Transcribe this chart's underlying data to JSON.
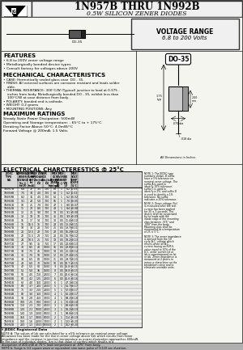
{
  "title_main": "1N957B THRU 1N992B",
  "title_sub": "0.5W SILICON ZENER DIODES",
  "voltage_range_line1": "VOLTAGE RANGE",
  "voltage_range_line2": "6.8 to 200 Volts",
  "features_title": "FEATURES",
  "features": [
    "• 6.8 to 200V zener voltage range",
    "• Metallurgically bonded device types",
    "• Consult factory for voltages above 200V"
  ],
  "mech_title": "MECHANICAL CHARACTERISTICS",
  "mech": [
    "• CASE: Hermetically sealed glass case  DO - 35.",
    "• FINISH: All external surfaces are corrosion resistant and leads solder",
    "    able.",
    "• THERMAL RESISTANCE: 300°C/W (Typical) junction to lead at 0.375 -",
    "    inches from body. Metallurgically bonded DO - 35, exhibit less than",
    "    100°C/W at case distance from body.",
    "• POLARITY: banded end is cathode.",
    "• WEIGHT: 0.2 grams",
    "• MOUNTING POSITIONS: Any"
  ],
  "max_title": "MAXIMUM RATINGS",
  "max_ratings": [
    "Steady State Power Dissipation: 500mW",
    "Operating and Storage temperature: - 65°C to + 175°C.",
    "Derating Factor Above 50°C: 4.0mW/°C",
    "Forward Voltage @ 200mA: 1.5 Volts"
  ],
  "elec_title": "ELECTRICAL CHARCTERESTICS @ 25°C",
  "col_headers": [
    "JEDEC\nTYPE\nNO.",
    "NOMINAL\nZENER\nVOLTAGE\nVz @\nIzt (V)",
    "TEST\nCURR-\nENT\nIzt\n(mA)",
    "MAX ZENER IMPEDANCE\nZzt@Izt     Zzk@Izk\n(Ω)            (Ω)",
    "MAX\nDC\nZENER\nCURR\nIzm(mA)",
    "MAX REVERSE\nCURRENT\nIR @ VR\nμA        V",
    "MAX\nVOLT\nTEMP\nCOEFF\n%/°C"
  ],
  "table_data": [
    [
      "1N957B",
      "6.8",
      "37",
      "3.5",
      "700",
      "68",
      "1",
      "6.2",
      "-0.05"
    ],
    [
      "1N958B",
      "7.5",
      "34",
      "4.0",
      "700",
      "63",
      "1",
      "6.2",
      "-0.02"
    ],
    [
      "1N959B",
      "8.2",
      "31",
      "4.5",
      "700",
      "61",
      "1",
      "6.2",
      "+0.02"
    ],
    [
      "1N960B",
      "9.1",
      "28",
      "5.0",
      "700",
      "55",
      "1",
      "7.0",
      "+0.05"
    ],
    [
      "1N961B",
      "10",
      "25",
      "7.0",
      "700",
      "47",
      "1",
      "8.0",
      "+0.07"
    ],
    [
      "1N962B",
      "11",
      "23",
      "8.0",
      "700",
      "43",
      "1",
      "8.4",
      "+0.08"
    ],
    [
      "1N963B",
      "12",
      "21",
      "9.0",
      "700",
      "38",
      "0.5",
      "9.1",
      "+0.08"
    ],
    [
      "1N964B",
      "13",
      "19",
      "10",
      "700",
      "35",
      "0.5",
      "9.9",
      "+0.09"
    ],
    [
      "1N965B",
      "15",
      "17",
      "14",
      "700",
      "30",
      "0.5",
      "11.4",
      "+0.10"
    ],
    [
      "1N966B",
      "16",
      "15.5",
      "16",
      "700",
      "28",
      "0.5",
      "12.2",
      "+0.11"
    ],
    [
      "1N967B",
      "18",
      "14",
      "20",
      "750",
      "25",
      "0.5",
      "13.7",
      "+0.11"
    ],
    [
      "1N968B",
      "20",
      "12.5",
      "22",
      "750",
      "22",
      "0.5",
      "15.2",
      "+0.12"
    ],
    [
      "1N969B",
      "22",
      "11.5",
      "23",
      "750",
      "20",
      "0.5",
      "16.7",
      "+0.12"
    ],
    [
      "1N970B",
      "24",
      "10.5",
      "25",
      "750",
      "19",
      "0.5",
      "18.2",
      "+0.13"
    ],
    [
      "1N971B",
      "27",
      "9.5",
      "35",
      "750",
      "17",
      "0.5",
      "20.6",
      "+0.13"
    ],
    [
      "1N972B",
      "30",
      "8.5",
      "40",
      "1000",
      "15",
      "0.5",
      "22.8",
      "+0.14"
    ],
    [
      "1N973B",
      "33",
      "7.5",
      "45",
      "1000",
      "14",
      "0.5",
      "25.1",
      "+0.14"
    ],
    [
      "1N974B",
      "36",
      "7.0",
      "50",
      "1000",
      "12",
      "0.5",
      "27.4",
      "+0.15"
    ],
    [
      "1N975B",
      "39",
      "6.5",
      "60",
      "1000",
      "11",
      "0.5",
      "29.7",
      "+0.15"
    ],
    [
      "1N976B",
      "43",
      "6.0",
      "70",
      "1500",
      "10",
      "0.5",
      "32.7",
      "+0.15"
    ],
    [
      "1N977B",
      "47",
      "5.5",
      "80",
      "1500",
      "9",
      "0.5",
      "35.8",
      "+0.15"
    ],
    [
      "1N978B",
      "51",
      "5.0",
      "95",
      "1500",
      "8",
      "0.5",
      "38.8",
      "+0.15"
    ],
    [
      "1N979B",
      "56",
      "4.5",
      "110",
      "2000",
      "7",
      "0.5",
      "42.6",
      "+0.16"
    ],
    [
      "1N980B",
      "60",
      "4.2",
      "125",
      "2000",
      "6",
      "0.5",
      "45.6",
      "+0.16"
    ],
    [
      "1N981B",
      "62",
      "4.0",
      "150",
      "2000",
      "6",
      "1",
      "47.1",
      "+0.16"
    ],
    [
      "1N982B",
      "68",
      "3.7",
      "200",
      "2000",
      "5",
      "1",
      "51.7",
      "+0.17"
    ],
    [
      "1N983B",
      "75",
      "3.3",
      "250",
      "2000",
      "5",
      "1",
      "57.0",
      "+0.17"
    ],
    [
      "1N984B",
      "82",
      "3.0",
      "350",
      "3000",
      "4",
      "1",
      "62.2",
      "+0.17"
    ],
    [
      "1N985B",
      "91",
      "2.8",
      "450",
      "3000",
      "4",
      "1",
      "69.2",
      "+0.18"
    ],
    [
      "1N986B",
      "100",
      "2.5",
      "600",
      "3000",
      "4",
      "1",
      "76.0",
      "+0.18"
    ],
    [
      "1N987B",
      "110",
      "2.3",
      "700",
      "4000",
      "3",
      "1",
      "83.6",
      "+0.18"
    ],
    [
      "1N988B",
      "120",
      "2.1",
      "1000",
      "4000",
      "3",
      "1",
      "91.2",
      "+0.19"
    ],
    [
      "1N989B",
      "130",
      "1.9",
      "1300",
      "5000",
      "3",
      "1",
      "98.8",
      "+0.19"
    ],
    [
      "1N990B",
      "150",
      "1.7",
      "1800",
      "6000",
      "2",
      "1",
      "114",
      "+0.19"
    ],
    [
      "1N991B",
      "160",
      "1.6",
      "2000",
      "7000",
      "2",
      "1",
      "122",
      "+0.20"
    ],
    [
      "1N992B",
      "200",
      "1.3",
      "3000",
      "10000",
      "2",
      "1",
      "152",
      "+0.20"
    ]
  ],
  "note1": "NOTE 1: The JEDEC type numbers shown, B suffix have a 5% tolerance on nominal zener voltage. The suffix A is used to identify 10% tolerance; suffix C is used to identify a 2%; and suffix D is used to identify a 1% tolerance. No suffix indicates a 20% tolerance.",
  "note2": "NOTE 2: Zener voltage (Vz) is measured after the test current has been applied for 30 ± 5 seconds. The device shall be suspended by its leads with the inside edge of the mounting clips between .375\" and .500\" from the body. Mounting clips shall be maintained at a temperature of 25 ± 5°C.",
  "note3": "NOTE 3: The zener impedance is derived from the 50 cycle A.C. voltage which results when an A.C. current having an R.M.S. value equal to 10% of the D.C. zener current Izt or Izk is superimposed on Izt or Izk. Zener impedance is measured at 2 points to insure a sharp knee on the breakdown curve and to eliminate unstable units.",
  "note_jedec": "† JEDEC Registered Data",
  "note_a": "NOTE A: The values of Izk are calculated for a ±5% tolerance on nominal zener voltage. Allowance has been made for the rise in zener voltage above Vzk which results from zener impedance and the increase in junction temperature as power dissipation approaches 400mW. In the case of individual diodes, Izm is that value of current which results in a dissipation of 400 mW at 75°C lead temperature at .075\" from body.",
  "note_b": "NOTE b: Surge is 1/2 square wave or equivalent sine wave pulse of 1/120 sec duration."
}
